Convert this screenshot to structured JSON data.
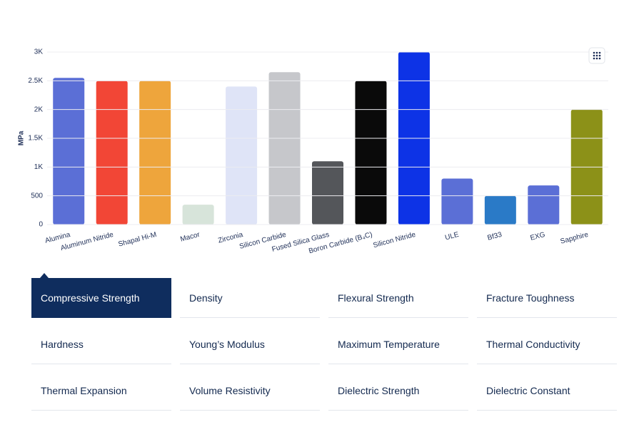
{
  "chart_data": {
    "type": "bar",
    "ylabel": "MPa",
    "categories": [
      "Alumina",
      "Aluminum Nitride",
      "Shapal Hi-M",
      "Macor",
      "Zirconia",
      "Silicon Carbide",
      "Fused Silica Glass",
      "Boron Carbide (B₄C)",
      "Silicon Nitride",
      "ULE",
      "Bf33",
      "EXG",
      "Sapphire"
    ],
    "values": [
      2550,
      2500,
      2500,
      345,
      2400,
      2650,
      1100,
      2500,
      3000,
      800,
      500,
      680,
      2000
    ],
    "colors": [
      "#5b6fd6",
      "#f24636",
      "#eea53c",
      "#d7e4da",
      "#dfe4f7",
      "#c6c7cb",
      "#54565a",
      "#0a0a0a",
      "#0d33e6",
      "#5b6fd6",
      "#2a7ac7",
      "#5b6fd6",
      "#8c9118"
    ],
    "ylim": [
      0,
      3000
    ],
    "yticks": [
      0,
      500,
      {
        "value": 1000,
        "label": "1K"
      },
      {
        "value": 1500,
        "label": "1.5K"
      },
      {
        "value": 2000,
        "label": "2K"
      },
      {
        "value": 2500,
        "label": "2.5K"
      },
      {
        "value": 3000,
        "label": "3K"
      }
    ],
    "grid": true
  },
  "tabs": {
    "selected": 0,
    "items": [
      "Compressive Strength",
      "Density",
      "Flexural Strength",
      "Fracture Toughness",
      "Hardness",
      "Young’s Modulus",
      "Maximum Temperature",
      "Thermal Conductivity",
      "Thermal Expansion",
      "Volume Resistivity",
      "Dielectric Strength",
      "Dielectric Constant"
    ]
  }
}
